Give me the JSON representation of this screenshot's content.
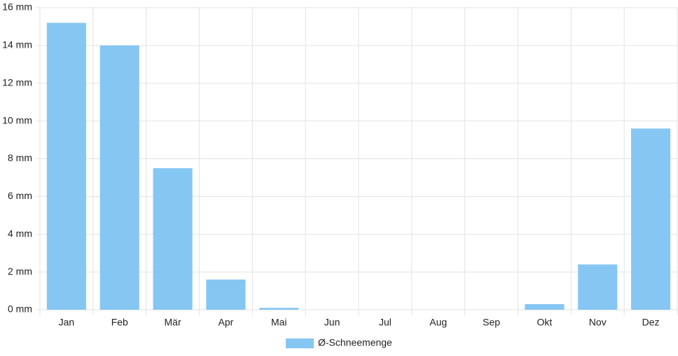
{
  "chart_data": {
    "type": "bar",
    "categories": [
      "Jan",
      "Feb",
      "Mär",
      "Apr",
      "Mai",
      "Jun",
      "Jul",
      "Aug",
      "Sep",
      "Okt",
      "Nov",
      "Dez"
    ],
    "series": [
      {
        "name": "Ø-Schneemenge",
        "color": "#86c6f2",
        "values": [
          15.2,
          14.0,
          7.5,
          1.6,
          0.1,
          0,
          0,
          0,
          0,
          0.3,
          2.4,
          9.6
        ]
      }
    ],
    "ylim": [
      0,
      16
    ],
    "yticks": [
      {
        "value": 0,
        "label": "0 mm"
      },
      {
        "value": 2,
        "label": "2 mm"
      },
      {
        "value": 4,
        "label": "4 mm"
      },
      {
        "value": 6,
        "label": "6 mm"
      },
      {
        "value": 8,
        "label": "8 mm"
      },
      {
        "value": 10,
        "label": "10 mm"
      },
      {
        "value": 12,
        "label": "12 mm"
      },
      {
        "value": 14,
        "label": "14 mm"
      },
      {
        "value": 16,
        "label": "16 mm"
      }
    ],
    "grid": true,
    "legend": "bottom"
  }
}
